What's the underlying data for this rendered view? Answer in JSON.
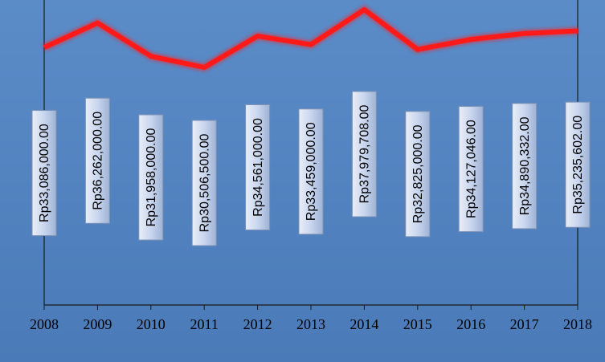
{
  "chart_data": {
    "type": "line",
    "categories": [
      "2008",
      "2009",
      "2010",
      "2011",
      "2012",
      "2013",
      "2014",
      "2015",
      "2016",
      "2017",
      "2018"
    ],
    "values": [
      33086000,
      36262000,
      31958000,
      30506500,
      34561000,
      33459000,
      37979708,
      32825000,
      34127046,
      34890332,
      35235602
    ],
    "value_labels": [
      "Rp33,086,000.00",
      "Rp36,262,000.00",
      "Rp31,958,000.00",
      "Rp30,506,500.00",
      "Rp34,561,000.00",
      "Rp33,459,000.00",
      "Rp37,979,708.00",
      "Rp32,825,000.00",
      "Rp34,127,046.00",
      "Rp34,890,332.00",
      "Rp35,235,602.00"
    ],
    "color": "#ff1a1a"
  }
}
